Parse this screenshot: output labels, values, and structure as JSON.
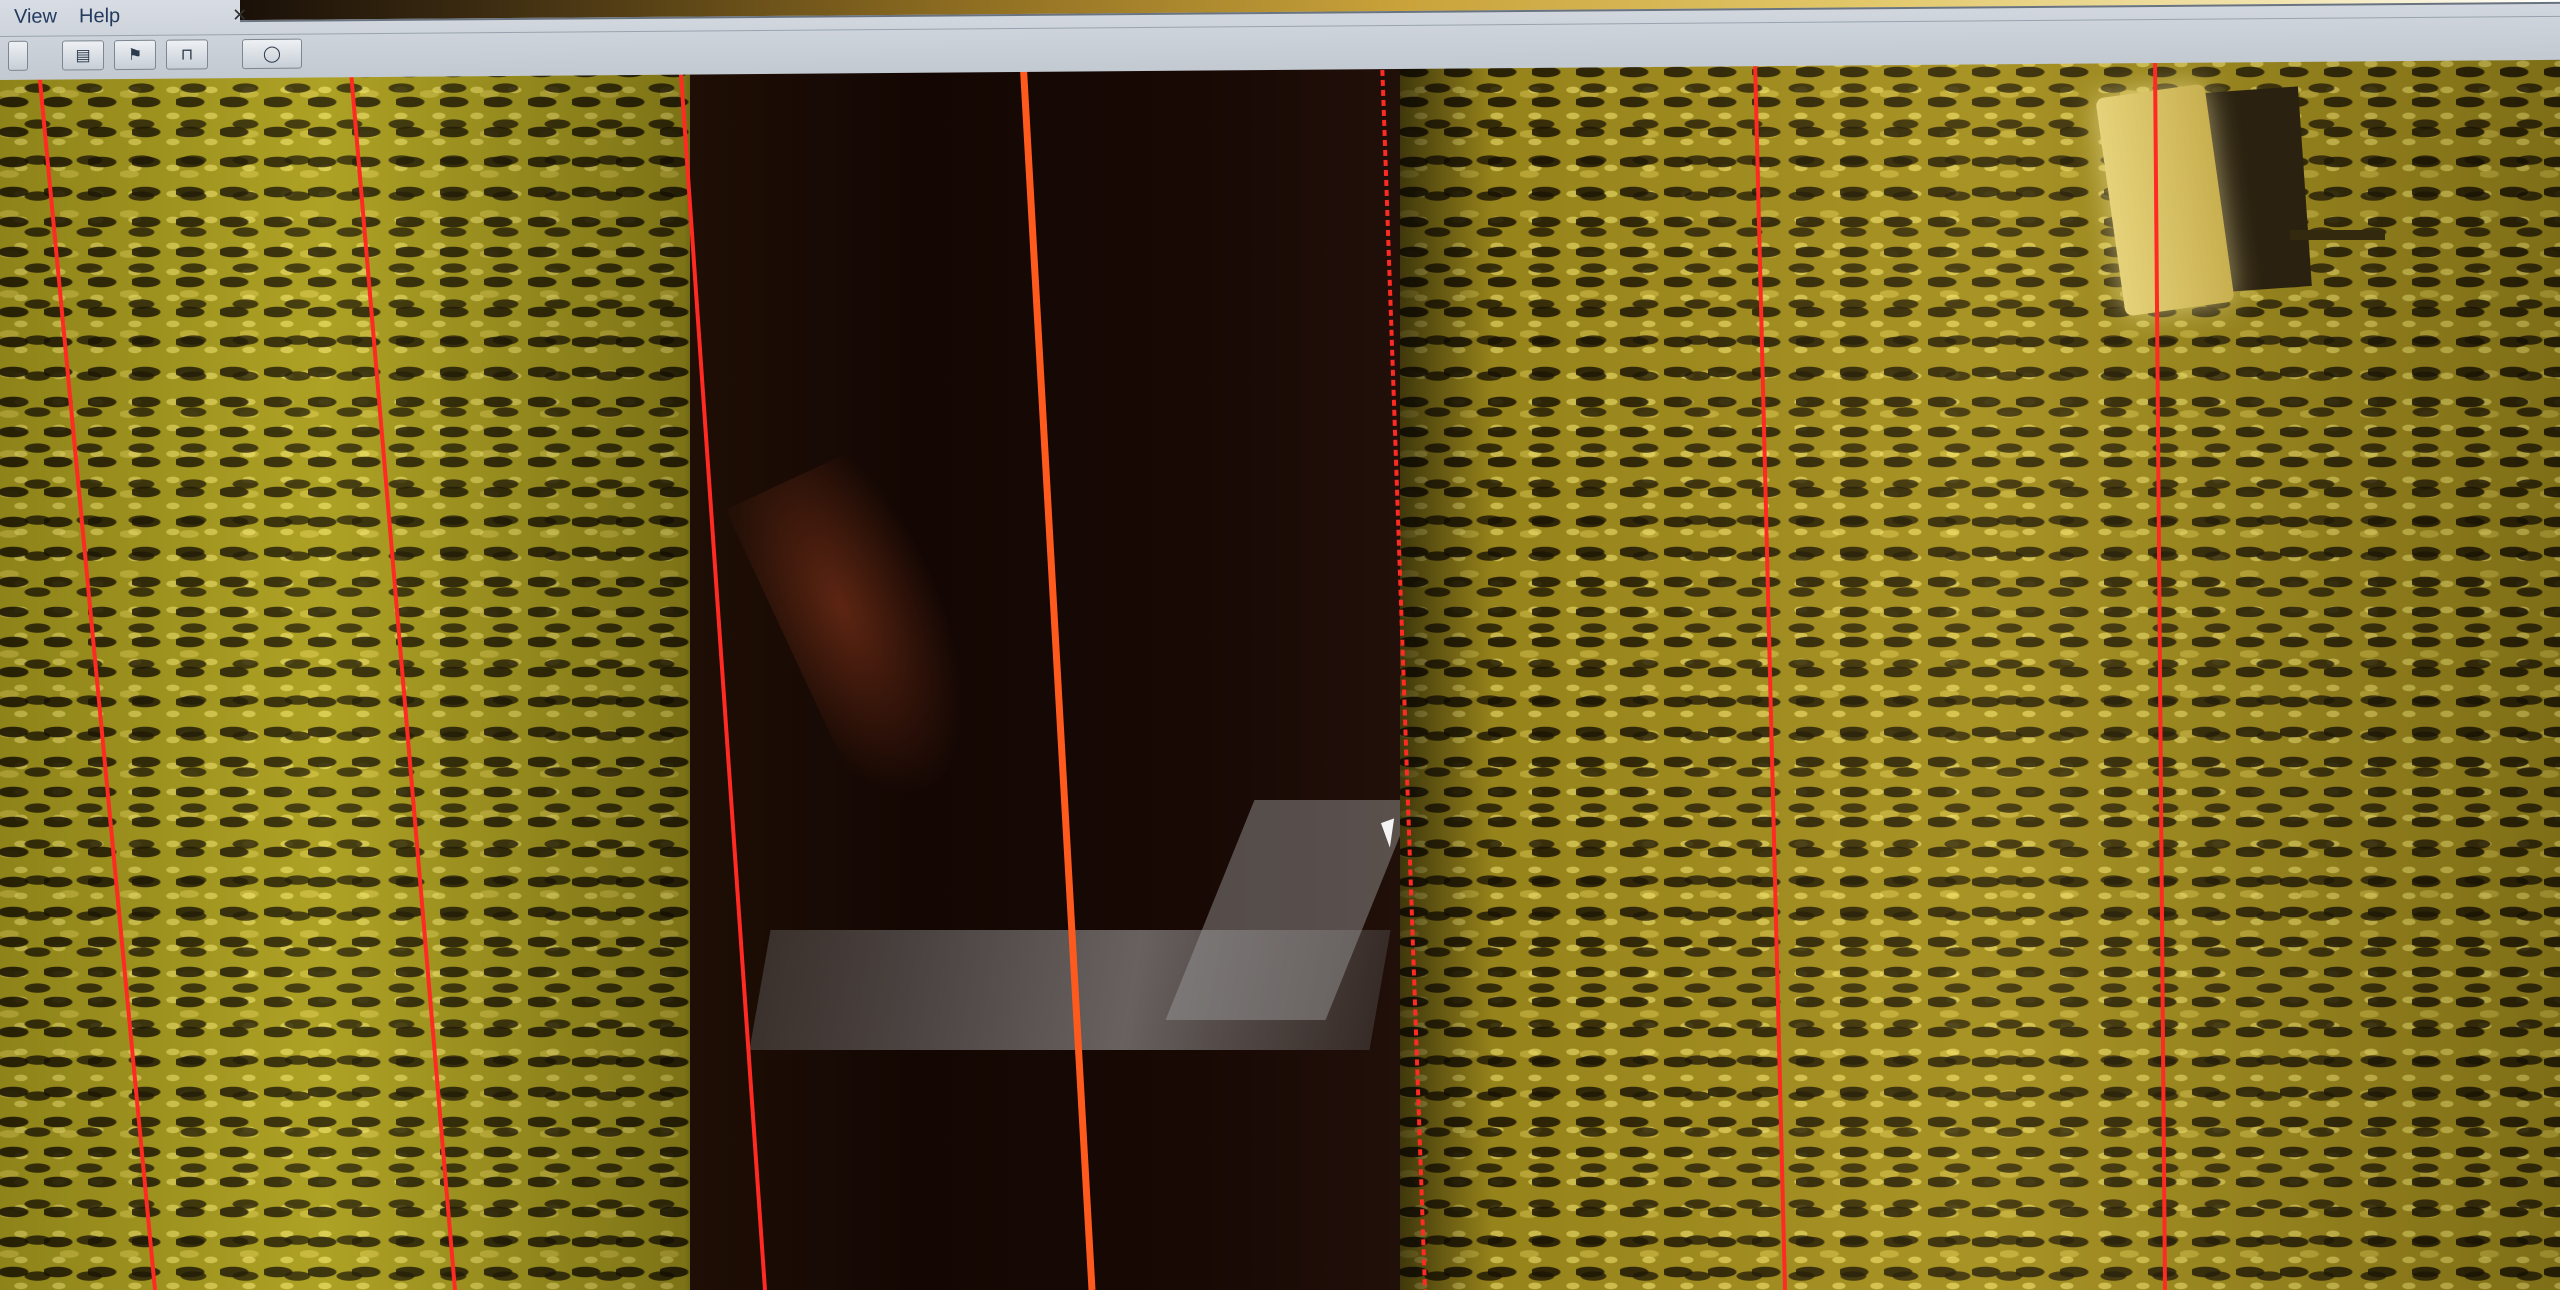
{
  "menubar": {
    "items": [
      "View",
      "Help"
    ]
  },
  "toolbar": {
    "buttons": [
      {
        "name": "print-icon"
      },
      {
        "name": "flag-icon"
      },
      {
        "name": "marker-icon"
      },
      {
        "name": "zoom-icon"
      }
    ]
  },
  "palette": {
    "accent_start": "#1a1008",
    "accent_end": "#ffffff",
    "marker_color": "#e0202a"
  },
  "display": {
    "range_line_color": "#ff2a22",
    "center_line_color": "#ff5a1e",
    "seabed_color": "#a79a1e",
    "water_column_color": "#140703"
  }
}
